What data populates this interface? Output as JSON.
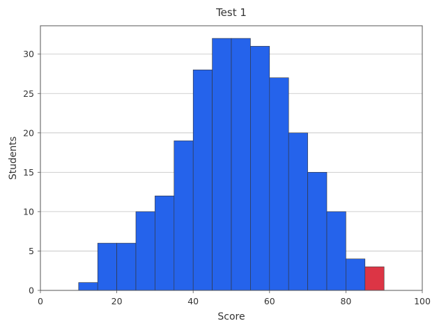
{
  "chart_data": {
    "type": "bar",
    "title": "Test 1",
    "xlabel": "Score",
    "ylabel": "Students",
    "xlim": [
      0,
      100
    ],
    "ylim": [
      0,
      33.6
    ],
    "x_ticks": [
      0,
      20,
      40,
      60,
      80,
      100
    ],
    "y_ticks": [
      0,
      5,
      10,
      15,
      20,
      25,
      30
    ],
    "grid": "horizontal",
    "bin_width": 5,
    "bins": [
      {
        "start": 10,
        "end": 15,
        "value": 1
      },
      {
        "start": 15,
        "end": 20,
        "value": 6
      },
      {
        "start": 20,
        "end": 25,
        "value": 6
      },
      {
        "start": 25,
        "end": 30,
        "value": 10
      },
      {
        "start": 30,
        "end": 35,
        "value": 12
      },
      {
        "start": 35,
        "end": 40,
        "value": 19
      },
      {
        "start": 40,
        "end": 45,
        "value": 28
      },
      {
        "start": 45,
        "end": 50,
        "value": 32
      },
      {
        "start": 50,
        "end": 55,
        "value": 32
      },
      {
        "start": 55,
        "end": 60,
        "value": 31
      },
      {
        "start": 60,
        "end": 65,
        "value": 27
      },
      {
        "start": 65,
        "end": 70,
        "value": 20
      },
      {
        "start": 70,
        "end": 75,
        "value": 15
      },
      {
        "start": 75,
        "end": 80,
        "value": 10
      },
      {
        "start": 80,
        "end": 85,
        "value": 4
      },
      {
        "start": 85,
        "end": 90,
        "value": 3,
        "highlight": true
      }
    ],
    "colors": {
      "bar": "#2563eb",
      "highlight": "#dc3545",
      "edge": "#333333",
      "grid": "#c0c0c0",
      "frame": "#555555"
    }
  }
}
